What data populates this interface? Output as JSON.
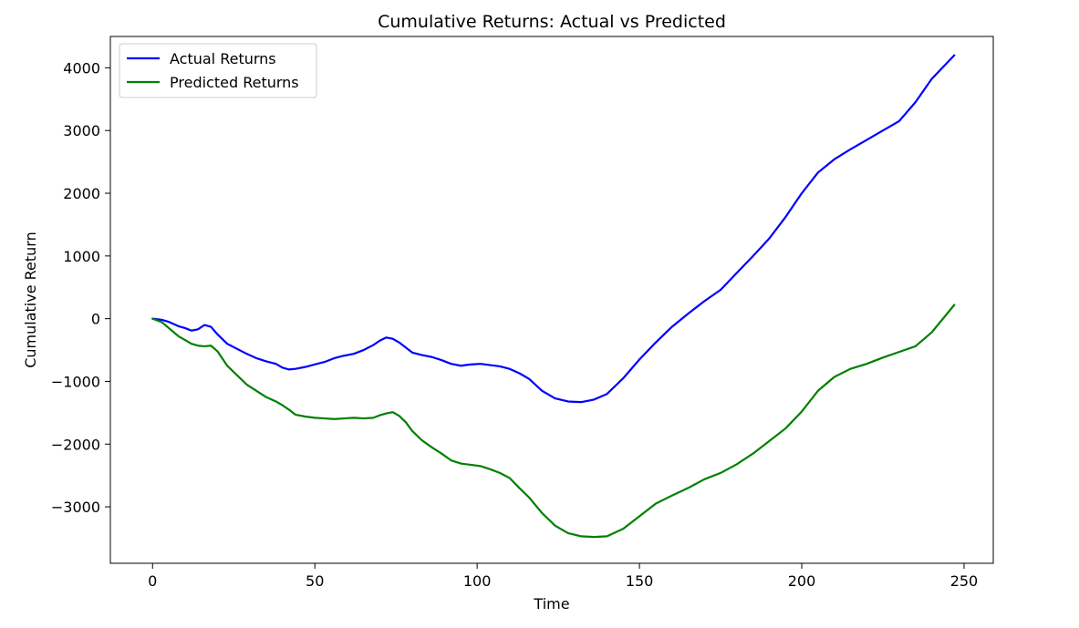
{
  "chart_data": {
    "type": "line",
    "title": "Cumulative Returns: Actual vs Predicted",
    "xlabel": "Time",
    "ylabel": "Cumulative Return",
    "xlim": [
      -13,
      259
    ],
    "ylim": [
      -3900,
      4500
    ],
    "xticks": [
      0,
      50,
      100,
      150,
      200,
      250
    ],
    "xtick_labels": [
      "0",
      "50",
      "100",
      "150",
      "200",
      "250"
    ],
    "yticks": [
      -3000,
      -2000,
      -1000,
      0,
      1000,
      2000,
      3000,
      4000
    ],
    "ytick_labels": [
      "−3000",
      "−2000",
      "−1000",
      "0",
      "1000",
      "2000",
      "3000",
      "4000"
    ],
    "grid": false,
    "legend": "top-left",
    "series": [
      {
        "name": "Actual Returns",
        "color": "#0000ff",
        "x": [
          0,
          3,
          5,
          8,
          10,
          12,
          14,
          16,
          18,
          20,
          23,
          26,
          29,
          32,
          35,
          38,
          40,
          42,
          44,
          47,
          50,
          53,
          56,
          59,
          62,
          65,
          68,
          70,
          72,
          74,
          76,
          78,
          80,
          83,
          86,
          89,
          92,
          95,
          98,
          101,
          104,
          107,
          110,
          113,
          116,
          120,
          124,
          128,
          132,
          136,
          140,
          145,
          150,
          155,
          160,
          165,
          170,
          175,
          180,
          185,
          190,
          195,
          200,
          205,
          210,
          215,
          220,
          225,
          230,
          235,
          240,
          247
        ],
        "y": [
          0,
          -20,
          -50,
          -120,
          -150,
          -190,
          -170,
          -100,
          -130,
          -250,
          -400,
          -480,
          -560,
          -630,
          -680,
          -720,
          -780,
          -810,
          -800,
          -770,
          -730,
          -690,
          -630,
          -590,
          -560,
          -500,
          -420,
          -350,
          -300,
          -320,
          -380,
          -460,
          -540,
          -580,
          -610,
          -660,
          -720,
          -750,
          -730,
          -720,
          -740,
          -760,
          -800,
          -870,
          -960,
          -1150,
          -1270,
          -1320,
          -1330,
          -1290,
          -1200,
          -950,
          -650,
          -380,
          -130,
          80,
          280,
          460,
          730,
          1000,
          1280,
          1620,
          2000,
          2330,
          2540,
          2700,
          2850,
          3000,
          3150,
          3450,
          3820,
          4200
        ]
      },
      {
        "name": "Predicted Returns",
        "color": "#008000",
        "x": [
          0,
          3,
          5,
          8,
          10,
          12,
          14,
          16,
          18,
          20,
          23,
          26,
          29,
          32,
          35,
          38,
          40,
          42,
          44,
          47,
          50,
          53,
          56,
          59,
          62,
          65,
          68,
          70,
          72,
          74,
          76,
          78,
          80,
          83,
          86,
          89,
          92,
          95,
          98,
          101,
          104,
          107,
          110,
          113,
          116,
          120,
          124,
          128,
          132,
          136,
          140,
          145,
          150,
          155,
          160,
          165,
          170,
          175,
          180,
          185,
          190,
          195,
          200,
          205,
          210,
          215,
          220,
          225,
          230,
          235,
          240,
          247
        ],
        "y": [
          0,
          -60,
          -150,
          -280,
          -340,
          -400,
          -430,
          -440,
          -430,
          -520,
          -750,
          -900,
          -1050,
          -1150,
          -1250,
          -1320,
          -1380,
          -1450,
          -1530,
          -1560,
          -1580,
          -1590,
          -1600,
          -1590,
          -1580,
          -1590,
          -1580,
          -1540,
          -1510,
          -1490,
          -1550,
          -1650,
          -1790,
          -1940,
          -2050,
          -2150,
          -2260,
          -2310,
          -2330,
          -2350,
          -2400,
          -2460,
          -2540,
          -2700,
          -2850,
          -3100,
          -3300,
          -3420,
          -3470,
          -3480,
          -3470,
          -3350,
          -3150,
          -2950,
          -2820,
          -2700,
          -2560,
          -2460,
          -2320,
          -2150,
          -1950,
          -1750,
          -1480,
          -1150,
          -930,
          -800,
          -720,
          -620,
          -530,
          -440,
          -220,
          220
        ]
      }
    ]
  }
}
